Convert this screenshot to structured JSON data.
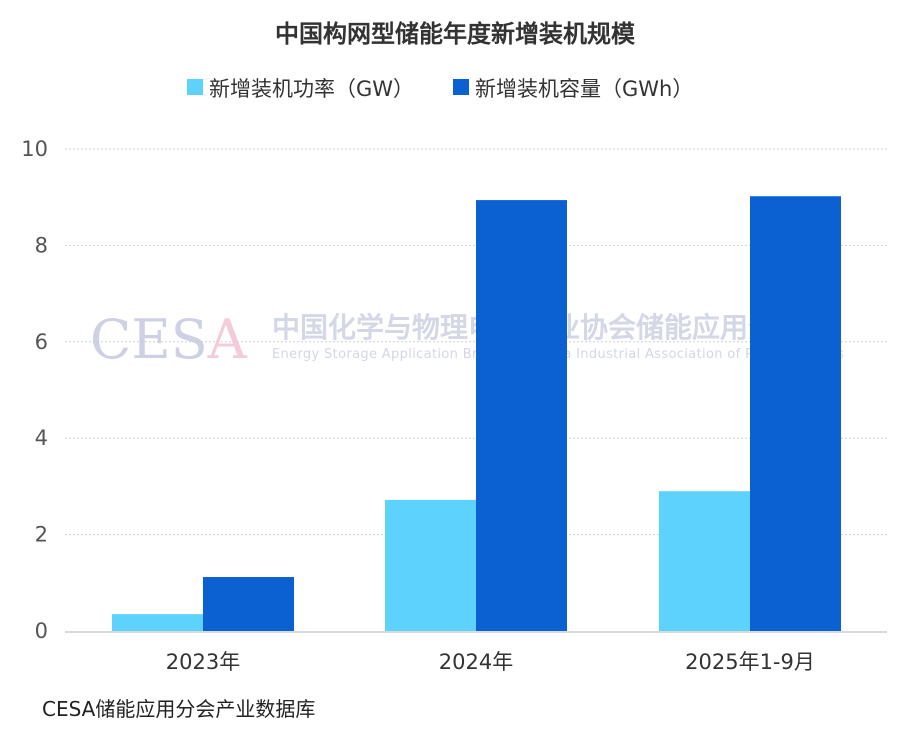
{
  "chart_data": {
    "type": "bar",
    "title": "中国构网型储能年度新增装机规模",
    "categories": [
      "2023年",
      "2024年",
      "2025年1-9月"
    ],
    "series": [
      {
        "name": "新增装机功率（GW）",
        "values": [
          0.35,
          2.72,
          2.9
        ],
        "color": "#5dd2fd"
      },
      {
        "name": "新增装机容量（GWh）",
        "values": [
          1.12,
          8.94,
          9.02
        ],
        "color": "#0b61d2"
      }
    ],
    "yticks": [
      0,
      2,
      4,
      6,
      8,
      10
    ],
    "ylim": [
      0,
      10
    ],
    "grid": true,
    "legend_position": "top",
    "xlabel": "",
    "ylabel": ""
  },
  "source": "CESA储能应用分会产业数据库",
  "watermark": {
    "logo": "CESA",
    "name_cn": "中国化学与物理电源行业协会储能应用分会",
    "name_en": "Energy Storage Application Branch of China Industrial Association of Power Sources"
  }
}
